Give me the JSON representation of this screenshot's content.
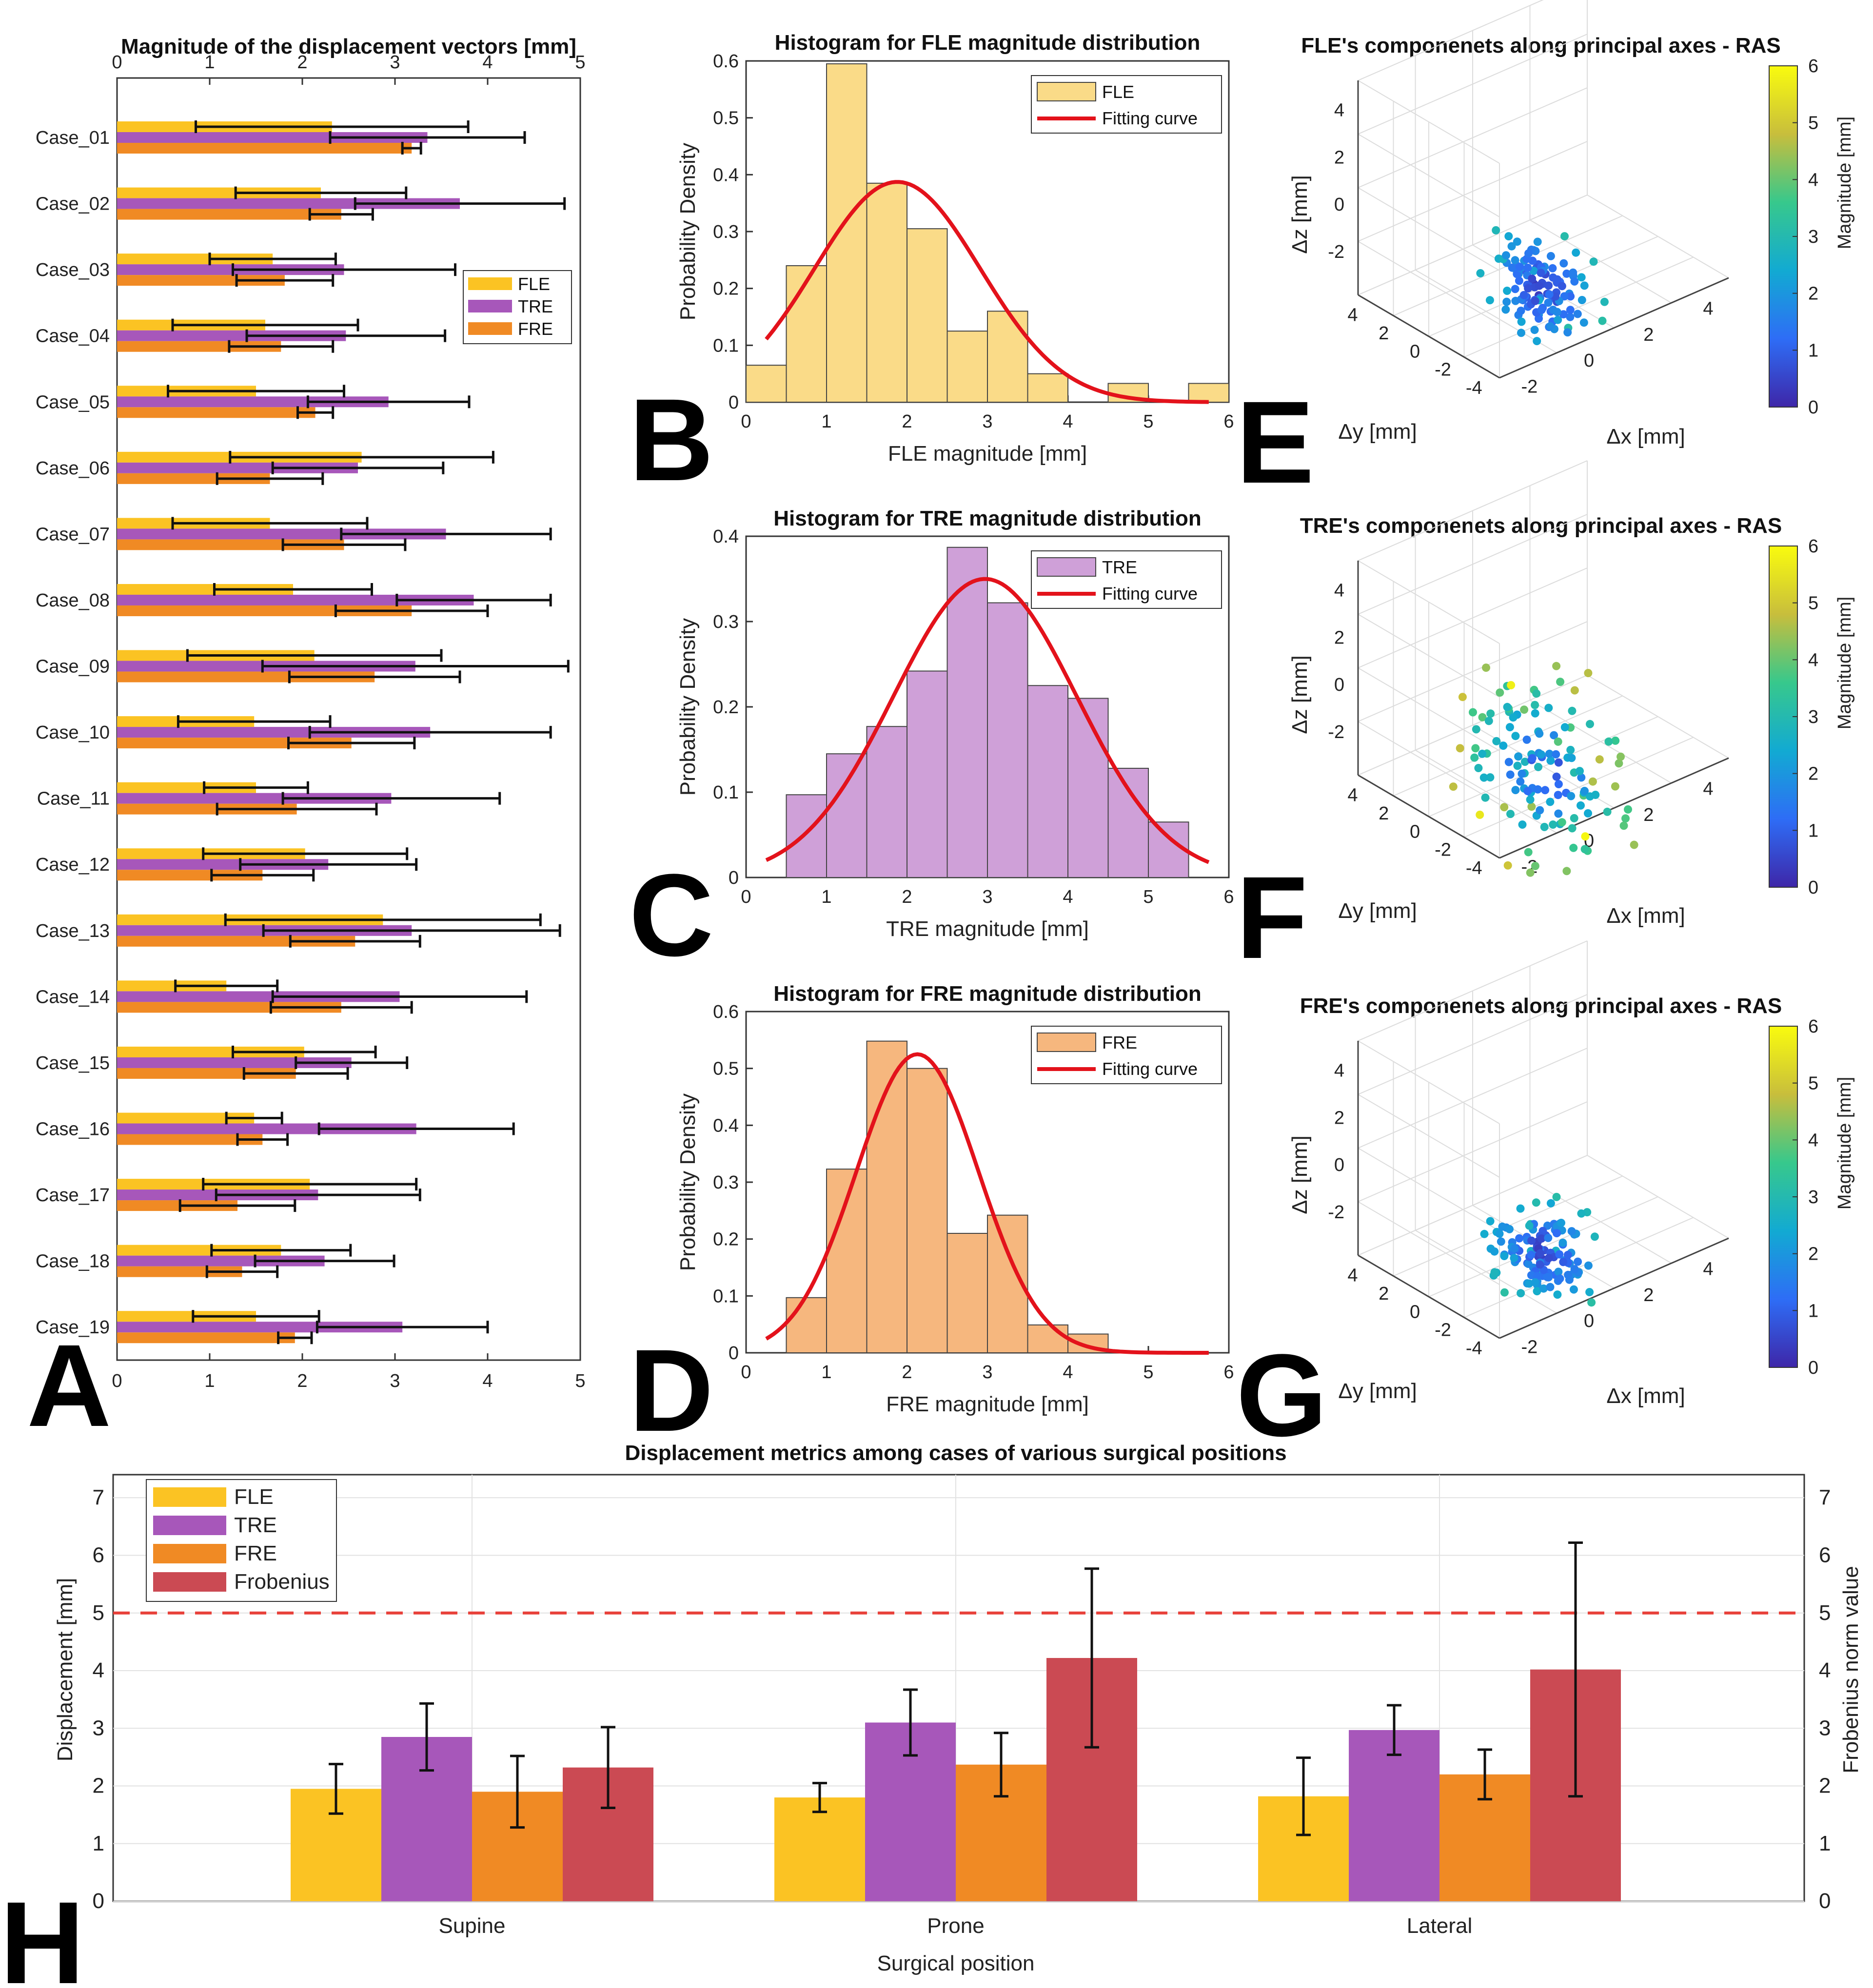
{
  "figure": {
    "panel_letters": [
      "A",
      "B",
      "C",
      "D",
      "E",
      "F",
      "G",
      "H"
    ]
  },
  "chart_data": [
    {
      "panel": "A",
      "type": "bar",
      "orientation": "horizontal",
      "title": "Magnitude of the displacement vectors [mm]",
      "xlim": [
        0,
        5
      ],
      "xticks": [
        0,
        1,
        2,
        3,
        4,
        5
      ],
      "legend": [
        "FLE",
        "TRE",
        "FRE"
      ],
      "legend_position": "upper-right",
      "categories": [
        "Case_01",
        "Case_02",
        "Case_03",
        "Case_04",
        "Case_05",
        "Case_06",
        "Case_07",
        "Case_08",
        "Case_09",
        "Case_10",
        "Case_11",
        "Case_12",
        "Case_13",
        "Case_14",
        "Case_15",
        "Case_16",
        "Case_17",
        "Case_18",
        "Case_19"
      ],
      "series": [
        {
          "name": "FLE",
          "color": "#FBC323",
          "values": [
            2.32,
            2.2,
            1.68,
            1.6,
            1.5,
            2.64,
            1.65,
            1.9,
            2.13,
            1.48,
            1.5,
            2.03,
            2.87,
            1.18,
            2.02,
            1.48,
            2.08,
            1.77,
            1.5
          ],
          "err": [
            1.47,
            0.92,
            0.68,
            1.0,
            0.95,
            1.42,
            1.05,
            0.85,
            1.37,
            0.82,
            0.56,
            1.1,
            1.7,
            0.55,
            0.77,
            0.3,
            1.15,
            0.75,
            0.68
          ]
        },
        {
          "name": "TRE",
          "color": "#A757BA",
          "values": [
            3.35,
            3.7,
            2.45,
            2.47,
            2.93,
            2.6,
            3.55,
            3.85,
            3.22,
            3.38,
            2.96,
            2.28,
            3.18,
            3.05,
            2.53,
            3.23,
            2.17,
            2.24,
            3.08
          ],
          "err": [
            1.05,
            1.13,
            1.2,
            1.07,
            0.87,
            0.92,
            1.13,
            0.83,
            1.65,
            1.3,
            1.17,
            0.95,
            1.6,
            1.37,
            0.6,
            1.05,
            1.1,
            0.75,
            0.92
          ]
        },
        {
          "name": "FRE",
          "color": "#F08A24",
          "values": [
            3.18,
            2.42,
            1.81,
            1.77,
            2.14,
            1.65,
            2.45,
            3.18,
            2.78,
            2.53,
            1.94,
            1.57,
            2.57,
            2.42,
            1.93,
            1.57,
            1.3,
            1.35,
            1.92
          ]
        },
        {
          "name": "FRE_err",
          "values": [
            0.1,
            0.34,
            0.52,
            0.56,
            0.19,
            0.57,
            0.66,
            0.82,
            0.92,
            0.68,
            0.86,
            0.55,
            0.7,
            0.76,
            0.56,
            0.27,
            0.62,
            0.38,
            0.18
          ]
        }
      ]
    },
    {
      "panel": "B",
      "type": "bar",
      "title": "Histogram for FLE magnitude distribution",
      "xlabel": "FLE magnitude [mm]",
      "ylabel": "Probability Density",
      "xlim": [
        0,
        6
      ],
      "ylim": [
        0,
        0.6
      ],
      "xticks": [
        0,
        1,
        2,
        3,
        4,
        5,
        6
      ],
      "yticks": [
        0,
        0.1,
        0.2,
        0.3,
        0.4,
        0.5,
        0.6
      ],
      "legend": [
        "FLE",
        "Fitting curve"
      ],
      "bar_color": "#FADB88",
      "bin_edges": [
        0,
        0.5,
        1,
        1.5,
        2,
        2.5,
        3,
        3.5,
        4,
        4.5,
        5,
        5.5,
        6
      ],
      "values": [
        0.065,
        0.24,
        0.595,
        0.385,
        0.305,
        0.125,
        0.16,
        0.05,
        0,
        0.033,
        0,
        0.033
      ],
      "fit": {
        "mean": 1.88,
        "sd": 1.03,
        "x_range": [
          0.25,
          5.75
        ]
      }
    },
    {
      "panel": "C",
      "type": "bar",
      "title": "Histogram for TRE magnitude distribution",
      "xlabel": "TRE magnitude [mm]",
      "ylabel": "Probability Density",
      "xlim": [
        0,
        6
      ],
      "ylim": [
        0,
        0.4
      ],
      "xticks": [
        0,
        1,
        2,
        3,
        4,
        5,
        6
      ],
      "yticks": [
        0,
        0.1,
        0.2,
        0.3,
        0.4
      ],
      "legend": [
        "TRE",
        "Fitting curve"
      ],
      "bar_color": "#CFA0D8",
      "bin_edges": [
        0.5,
        1,
        1.5,
        2,
        2.5,
        3,
        3.5,
        4,
        4.5,
        5,
        5.5
      ],
      "values": [
        0.097,
        0.145,
        0.177,
        0.242,
        0.387,
        0.322,
        0.225,
        0.21,
        0.128,
        0.065
      ],
      "fit": {
        "mean": 2.97,
        "sd": 1.14,
        "x_range": [
          0.25,
          5.75
        ]
      }
    },
    {
      "panel": "D",
      "type": "bar",
      "title": "Histogram for FRE magnitude distribution",
      "xlabel": "FRE magnitude [mm]",
      "ylabel": "Probability Density",
      "xlim": [
        0,
        6
      ],
      "ylim": [
        0,
        0.6
      ],
      "xticks": [
        0,
        1,
        2,
        3,
        4,
        5,
        6
      ],
      "yticks": [
        0,
        0.1,
        0.2,
        0.3,
        0.4,
        0.5,
        0.6
      ],
      "legend": [
        "FRE",
        "Fitting curve"
      ],
      "bar_color": "#F6B77E",
      "bin_edges": [
        0.5,
        1,
        1.5,
        2,
        2.5,
        3,
        3.5,
        4,
        4.5
      ],
      "values": [
        0.097,
        0.323,
        0.548,
        0.5,
        0.21,
        0.242,
        0.049,
        0.033
      ],
      "fit": {
        "mean": 2.13,
        "sd": 0.76,
        "x_range": [
          0.25,
          5.75
        ]
      }
    },
    {
      "panel": "E",
      "type": "scatter",
      "title": "FLE's componenets along principal axes - RAS",
      "xlabel": "Δx [mm]",
      "ylabel": "Δy [mm]",
      "zlabel": "Δz [mm]",
      "colorbar_label": "Magnitude [mm]",
      "colorbar_ticks": [
        "0",
        "1",
        "2",
        "3",
        "4",
        "5",
        "6"
      ],
      "z_ticks": [
        "4",
        "2",
        "0",
        "-2"
      ],
      "y_ticks": [
        "4",
        "2",
        "0",
        "-2",
        "-4"
      ],
      "x_ticks": [
        "-2",
        "0",
        "2",
        "4"
      ],
      "seed": 11,
      "n_points": 130,
      "spread": [
        0.85,
        1.0
      ]
    },
    {
      "panel": "F",
      "type": "scatter",
      "title": "TRE's componenets along principal axes - RAS",
      "xlabel": "Δx [mm]",
      "ylabel": "Δy [mm]",
      "zlabel": "Δz [mm]",
      "colorbar_label": "Magnitude [mm]",
      "colorbar_ticks": [
        "0",
        "1",
        "2",
        "3",
        "4",
        "5",
        "6"
      ],
      "z_ticks": [
        "4",
        "2",
        "0",
        "-2"
      ],
      "y_ticks": [
        "4",
        "2",
        "0",
        "-2",
        "-4"
      ],
      "x_ticks": [
        "-2",
        "0",
        "2",
        "4"
      ],
      "seed": 23,
      "n_points": 130,
      "spread": [
        1.5,
        1.7
      ]
    },
    {
      "panel": "G",
      "type": "scatter",
      "title": "FRE's componenets along principal axes - RAS",
      "xlabel": "Δx [mm]",
      "ylabel": "Δy [mm]",
      "zlabel": "Δz [mm]",
      "colorbar_label": "Magnitude [mm]",
      "colorbar_ticks": [
        "0",
        "1",
        "2",
        "3",
        "4",
        "5",
        "6"
      ],
      "z_ticks": [
        "4",
        "2",
        "0",
        "-2"
      ],
      "y_ticks": [
        "4",
        "2",
        "0",
        "-2",
        "-4"
      ],
      "x_ticks": [
        "-2",
        "0",
        "2",
        "4"
      ],
      "seed": 37,
      "n_points": 130,
      "spread": [
        0.9,
        0.85
      ]
    },
    {
      "panel": "H",
      "type": "bar",
      "title": "Displacement metrics among cases of various surgical positions",
      "xlabel": "Surgical position",
      "ylabel": "Displacement [mm]",
      "ylabel_right": "Frobenius norm value",
      "ylim": [
        0,
        7.4
      ],
      "yticks": [
        0,
        1,
        2,
        3,
        4,
        5,
        6,
        7
      ],
      "threshold": 5,
      "categories": [
        "Supine",
        "Prone",
        "Lateral"
      ],
      "legend": [
        "FLE",
        "TRE",
        "FRE",
        "Frobenius"
      ],
      "series": [
        {
          "name": "FLE",
          "color": "#FBC323",
          "values": [
            1.95,
            1.8,
            1.82
          ],
          "err": [
            0.43,
            0.25,
            0.67
          ]
        },
        {
          "name": "TRE",
          "color": "#A757BA",
          "values": [
            2.85,
            3.1,
            2.97
          ],
          "err": [
            0.58,
            0.57,
            0.43
          ]
        },
        {
          "name": "FRE",
          "color": "#F08A24",
          "values": [
            1.9,
            2.37,
            2.2
          ],
          "err": [
            0.62,
            0.55,
            0.43
          ]
        },
        {
          "name": "Frobenius",
          "color": "#CB4A53",
          "values": [
            2.32,
            4.22,
            4.02
          ],
          "err": [
            0.7,
            1.55,
            2.2
          ]
        }
      ]
    }
  ]
}
